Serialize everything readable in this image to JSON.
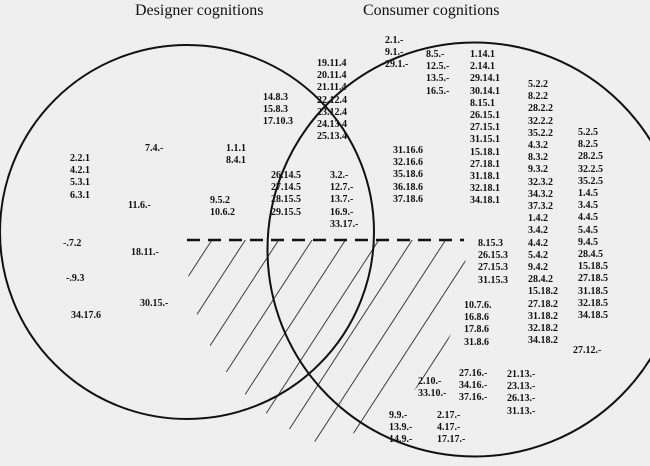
{
  "titles": {
    "designer": "Designer cognitions",
    "consumer": "Consumer cognitions"
  },
  "groups": [
    {
      "id": "d1",
      "region": "designer-only",
      "codes": [
        "2.2.1",
        "4.2.1",
        "5.3.1",
        "6.3.1"
      ]
    },
    {
      "id": "d2",
      "region": "designer-only",
      "codes": [
        "7.4.-"
      ]
    },
    {
      "id": "d3",
      "region": "designer-only",
      "codes": [
        "11.6.-"
      ]
    },
    {
      "id": "d4",
      "region": "designer-only",
      "codes": [
        "-.7.2"
      ]
    },
    {
      "id": "d5",
      "region": "designer-only",
      "codes": [
        "18.11.-"
      ]
    },
    {
      "id": "d6",
      "region": "designer-only",
      "codes": [
        "-.9.3"
      ]
    },
    {
      "id": "d7",
      "region": "designer-only",
      "codes": [
        "30.15.-"
      ]
    },
    {
      "id": "d8",
      "region": "designer-only",
      "codes": [
        "34.17.6"
      ]
    },
    {
      "id": "o1",
      "region": "overlap",
      "codes": [
        "19.11.4",
        "20.11.4",
        "21.11.4",
        "22.12.4",
        "23.12.4",
        "24.13.4",
        "25.13.4"
      ]
    },
    {
      "id": "o2",
      "region": "overlap",
      "codes": [
        "14.8.3",
        "15.8.3",
        "17.10.3"
      ]
    },
    {
      "id": "o3",
      "region": "overlap",
      "codes": [
        "1.1.1",
        "8.4.1"
      ]
    },
    {
      "id": "o4",
      "region": "overlap",
      "codes": [
        "26.14.5",
        "27.14.5",
        "28.15.5",
        "29.15.5"
      ]
    },
    {
      "id": "o5",
      "region": "overlap",
      "codes": [
        "3.2.-",
        "12.7.-",
        "13.7.-",
        "16.9.-",
        "33.17.-"
      ]
    },
    {
      "id": "o6",
      "region": "overlap",
      "codes": [
        "31.16.6",
        "32.16.6",
        "35.18.6",
        "36.18.6",
        "37.18.6"
      ]
    },
    {
      "id": "o7",
      "region": "overlap",
      "codes": [
        "9.5.2",
        "10.6.2"
      ]
    },
    {
      "id": "c1",
      "region": "consumer-only",
      "codes": [
        "2.1.-",
        "9.1.-",
        "29.1.-"
      ]
    },
    {
      "id": "c2",
      "region": "consumer-only",
      "codes": [
        "8.5.-",
        "12.5.-",
        "13.5.-",
        "16.5.-"
      ]
    },
    {
      "id": "c3",
      "region": "consumer-only",
      "codes": [
        "1.14.1",
        "2.14.1",
        "29.14.1",
        "30.14.1",
        "8.15.1",
        "26.15.1",
        "27.15.1",
        "31.15.1",
        "15.18.1",
        "27.18.1",
        "31.18.1",
        "32.18.1",
        "34.18.1"
      ]
    },
    {
      "id": "c4",
      "region": "consumer-only",
      "codes": [
        "5.2.2",
        "8.2.2",
        "28.2.2",
        "32.2.2",
        "35.2.2",
        "4.3.2",
        "8.3.2",
        "9.3.2",
        "32.3.2",
        "34.3.2",
        "37.3.2",
        "1.4.2",
        "3.4.2",
        "4.4.2",
        "5.4.2",
        "9.4.2",
        "28.4.2",
        "15.18.2",
        "27.18.2",
        "31.18.2",
        "32.18.2",
        "34.18.2"
      ]
    },
    {
      "id": "c5",
      "region": "consumer-only",
      "codes": [
        "5.2.5",
        "8.2.5",
        "28.2.5",
        "32.2.5",
        "35.2.5",
        "1.4.5",
        "3.4.5",
        "4.4.5",
        "5.4.5",
        "9.4.5",
        "28.4.5",
        "15.18.5",
        "27.18.5",
        "31.18.5",
        "32.18.5",
        "34.18.5"
      ]
    },
    {
      "id": "c6",
      "region": "consumer-only",
      "codes": [
        "8.15.3",
        "26.15.3",
        "27.15.3",
        "31.15.3"
      ]
    },
    {
      "id": "c7",
      "region": "consumer-only",
      "codes": [
        "10.7.6.",
        "16.8.6",
        "17.8.6",
        "31.8.6"
      ]
    },
    {
      "id": "c8",
      "region": "consumer-only",
      "codes": [
        "27.12.-"
      ]
    },
    {
      "id": "c9",
      "region": "consumer-only",
      "codes": [
        "2.10.-",
        "33.10.-"
      ]
    },
    {
      "id": "c10",
      "region": "consumer-only",
      "codes": [
        "27.16.-",
        "34.16.-",
        "37.16.-"
      ]
    },
    {
      "id": "c11",
      "region": "consumer-only",
      "codes": [
        "21.13.-",
        "23.13.-",
        "26.13.-",
        "31.13.-"
      ]
    },
    {
      "id": "c12",
      "region": "consumer-only",
      "codes": [
        "9.9.-",
        "13.9.-",
        "14.9.-"
      ]
    },
    {
      "id": "c13",
      "region": "consumer-only",
      "codes": [
        "2.17.-",
        "4.17.-",
        "17.17.-"
      ]
    }
  ]
}
